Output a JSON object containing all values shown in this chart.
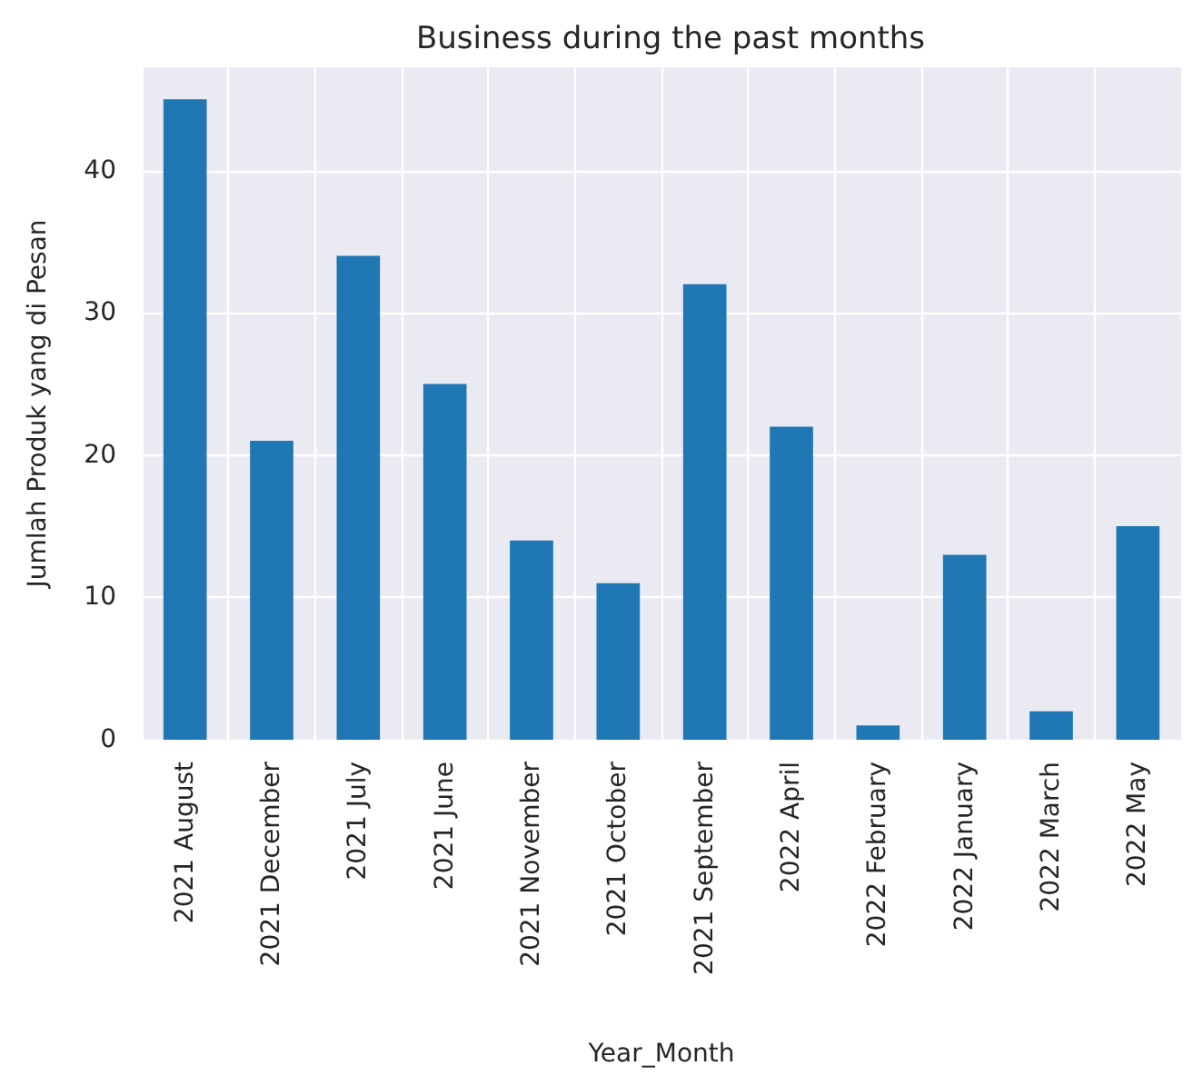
{
  "chart_data": {
    "type": "bar",
    "title": "Business during the past months",
    "xlabel": "Year_Month",
    "ylabel": "Jumlah Produk yang di Pesan",
    "categories": [
      "2021 August",
      "2021 December",
      "2021 July",
      "2021 June",
      "2021 November",
      "2021 October",
      "2021 September",
      "2022 April",
      "2022 February",
      "2022 January",
      "2022 March",
      "2022 May"
    ],
    "values": [
      45,
      21,
      34,
      25,
      14,
      11,
      32,
      22,
      1,
      13,
      2,
      15
    ],
    "color": "#1f77b4",
    "ylim": [
      0,
      47.25
    ],
    "yticks": [
      0,
      10,
      20,
      30,
      40
    ],
    "grid": true,
    "legend": false
  }
}
